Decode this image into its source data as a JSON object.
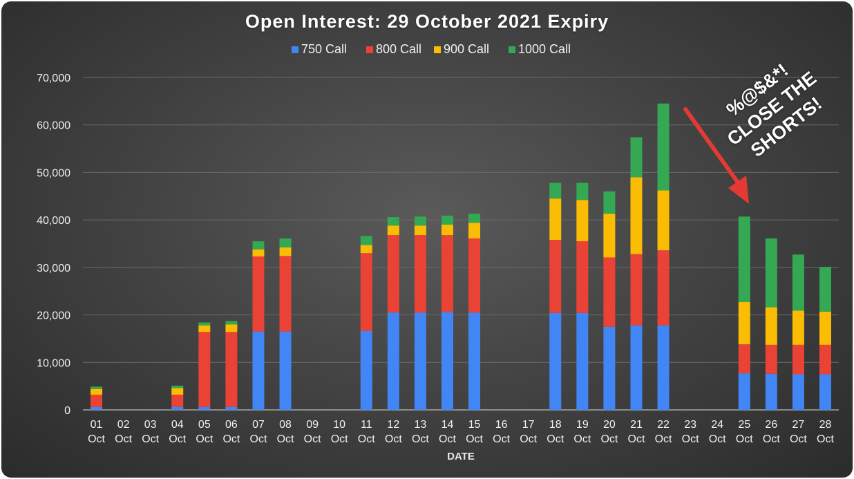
{
  "chart_data": {
    "type": "bar",
    "stacked": true,
    "title": "Open Interest: 29 October 2021 Expiry",
    "xlabel": "DATE",
    "ylabel": "",
    "ylim": [
      0,
      70000
    ],
    "yticks": [
      "0",
      "10,000",
      "20,000",
      "30,000",
      "40,000",
      "50,000",
      "60,000",
      "70,000"
    ],
    "grid": true,
    "legend_position": "top",
    "categories": [
      [
        "01",
        "Oct"
      ],
      [
        "02",
        "Oct"
      ],
      [
        "03",
        "Oct"
      ],
      [
        "04",
        "Oct"
      ],
      [
        "05",
        "Oct"
      ],
      [
        "06",
        "Oct"
      ],
      [
        "07",
        "Oct"
      ],
      [
        "08",
        "Oct"
      ],
      [
        "09",
        "Oct"
      ],
      [
        "10",
        "Oct"
      ],
      [
        "11",
        "Oct"
      ],
      [
        "12",
        "Oct"
      ],
      [
        "13",
        "Oct"
      ],
      [
        "14",
        "Oct"
      ],
      [
        "15",
        "Oct"
      ],
      [
        "16",
        "Oct"
      ],
      [
        "17",
        "Oct"
      ],
      [
        "18",
        "Oct"
      ],
      [
        "19",
        "Oct"
      ],
      [
        "20",
        "Oct"
      ],
      [
        "21",
        "Oct"
      ],
      [
        "22",
        "Oct"
      ],
      [
        "23",
        "Oct"
      ],
      [
        "24",
        "Oct"
      ],
      [
        "25",
        "Oct"
      ],
      [
        "26",
        "Oct"
      ],
      [
        "27",
        "Oct"
      ],
      [
        "28",
        "Oct"
      ]
    ],
    "series": [
      {
        "name": "750 Call",
        "color": "#4285f4",
        "values": [
          600,
          0,
          0,
          600,
          600,
          600,
          16500,
          16500,
          0,
          0,
          16600,
          20500,
          20500,
          20600,
          20500,
          0,
          0,
          20400,
          20400,
          17500,
          17800,
          17800,
          0,
          0,
          7700,
          7600,
          7500,
          7500
        ]
      },
      {
        "name": "800 Call",
        "color": "#ea4335",
        "values": [
          2600,
          0,
          0,
          2600,
          15800,
          15800,
          15800,
          15900,
          0,
          0,
          16400,
          16300,
          16300,
          16200,
          15600,
          0,
          0,
          15400,
          15100,
          14600,
          15000,
          15800,
          0,
          0,
          6100,
          6100,
          6200,
          6200
        ]
      },
      {
        "name": "900 Call",
        "color": "#fbbc04",
        "values": [
          1200,
          0,
          0,
          1400,
          1400,
          1600,
          1500,
          1800,
          0,
          0,
          1700,
          2000,
          2000,
          2200,
          3300,
          0,
          0,
          8700,
          8700,
          9200,
          16200,
          12600,
          0,
          0,
          8900,
          7900,
          7200,
          7000
        ]
      },
      {
        "name": "1000 Call",
        "color": "#34a853",
        "values": [
          500,
          0,
          0,
          500,
          600,
          700,
          1700,
          1900,
          0,
          0,
          1900,
          1800,
          1900,
          1900,
          1900,
          0,
          0,
          3300,
          3600,
          4700,
          8400,
          18300,
          0,
          0,
          18000,
          14500,
          11800,
          9400
        ]
      }
    ]
  },
  "annotation": {
    "lines": [
      "%@$&*!",
      "CLOSE THE",
      "SHORTS!"
    ],
    "arrow_color": "#e53935"
  }
}
